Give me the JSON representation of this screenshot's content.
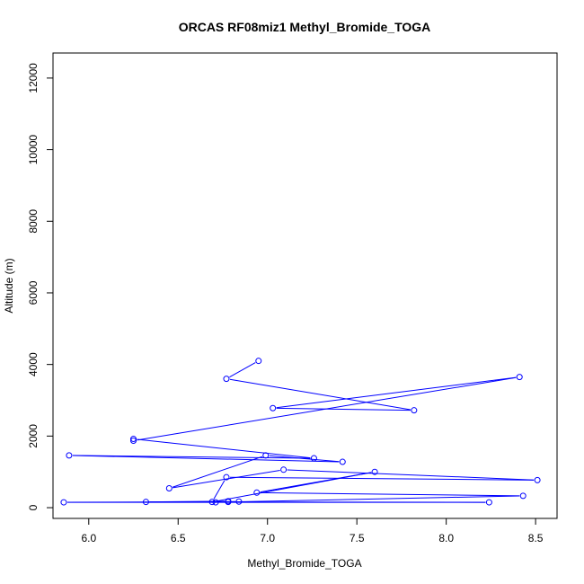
{
  "chart_data": {
    "type": "line",
    "title": "ORCAS RF08miz1 Methyl_Bromide_TOGA",
    "xlabel": "Methyl_Bromide_TOGA",
    "ylabel": "Altitude (m)",
    "xlim": [
      5.8,
      8.62
    ],
    "ylim": [
      -300,
      12700
    ],
    "xticks": [
      "6.0",
      "6.5",
      "7.0",
      "7.5",
      "8.0",
      "8.5"
    ],
    "yticks": [
      "0",
      "2000",
      "4000",
      "6000",
      "8000",
      "10000",
      "12000"
    ],
    "line_color": "#0000ff",
    "marker": "open-circle",
    "grid": false,
    "series": [
      {
        "x": [
          6.95,
          6.77,
          7.82,
          7.03,
          8.41,
          6.25,
          6.25,
          7.26,
          5.89,
          7.42,
          6.99,
          6.45,
          7.09,
          8.51,
          6.77,
          6.69,
          7.6,
          6.94,
          8.43,
          6.71,
          6.78,
          6.84,
          5.86,
          8.24,
          6.32,
          6.78
        ]
      },
      {
        "y": [
          4100,
          3600,
          2720,
          2780,
          3650,
          1870,
          1920,
          1380,
          1460,
          1280,
          1460,
          540,
          1060,
          770,
          850,
          160,
          1000,
          420,
          330,
          150,
          160,
          170,
          150,
          150,
          160,
          180
        ]
      }
    ]
  }
}
